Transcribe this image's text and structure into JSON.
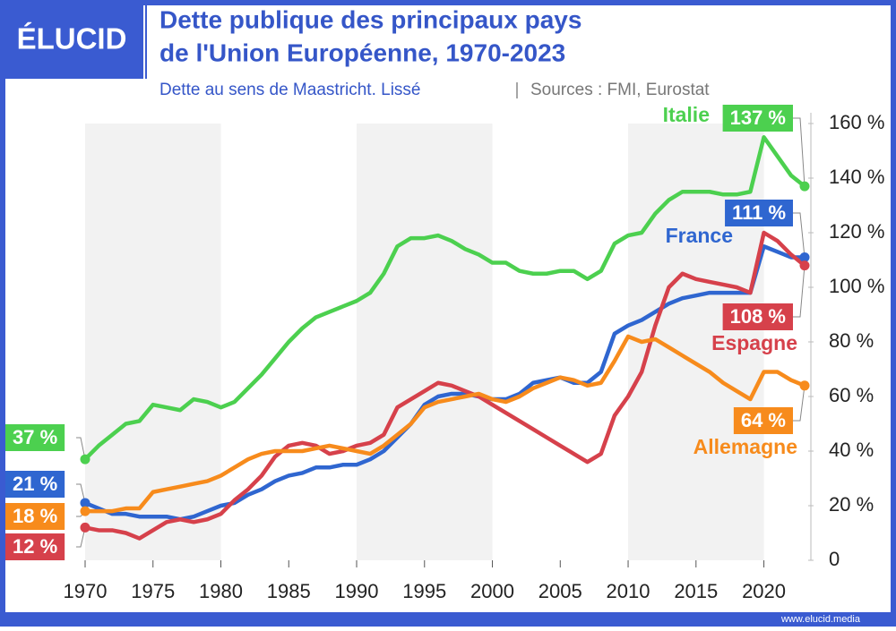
{
  "header": {
    "logo": "ÉLUCID",
    "title_line1": "Dette publique des principaux pays",
    "title_line2": "de l'Union Européenne, 1970-2023",
    "subtitle": "Dette au sens de Maastricht. Lissé",
    "source": "Sources : FMI, Eurostat"
  },
  "footer": {
    "url": "www.elucid.media"
  },
  "chart_data": {
    "type": "line",
    "x": [
      1970,
      1971,
      1972,
      1973,
      1974,
      1975,
      1976,
      1977,
      1978,
      1979,
      1980,
      1981,
      1982,
      1983,
      1984,
      1985,
      1986,
      1987,
      1988,
      1989,
      1990,
      1991,
      1992,
      1993,
      1994,
      1995,
      1996,
      1997,
      1998,
      1999,
      2000,
      2001,
      2002,
      2003,
      2004,
      2005,
      2006,
      2007,
      2008,
      2009,
      2010,
      2011,
      2012,
      2013,
      2014,
      2015,
      2016,
      2017,
      2018,
      2019,
      2020,
      2021,
      2022,
      2023
    ],
    "xlim": [
      1970,
      2023
    ],
    "xticks": [
      1970,
      1975,
      1980,
      1985,
      1990,
      1995,
      2000,
      2005,
      2010,
      2015,
      2020
    ],
    "ylim": [
      0,
      160
    ],
    "yticks": [
      0,
      {
        "value": 20,
        "label": "20 %"
      },
      {
        "value": 40,
        "label": "40 %"
      },
      {
        "value": 60,
        "label": "60 %"
      },
      {
        "value": 80,
        "label": "80 %"
      },
      {
        "value": 100,
        "label": "100 %"
      },
      {
        "value": 120,
        "label": "120 %"
      },
      {
        "value": 140,
        "label": "140 %"
      },
      {
        "value": 160,
        "label": "160 %"
      }
    ],
    "shaded_bands": true,
    "series": [
      {
        "name": "Italie",
        "color": "#4cd04f",
        "values": [
          37,
          42,
          46,
          50,
          51,
          57,
          56,
          55,
          59,
          58,
          56,
          58,
          63,
          68,
          74,
          80,
          85,
          89,
          91,
          93,
          95,
          98,
          105,
          115,
          118,
          118,
          119,
          117,
          114,
          112,
          109,
          109,
          106,
          105,
          105,
          106,
          106,
          103,
          106,
          116,
          119,
          120,
          127,
          132,
          135,
          135,
          135,
          134,
          134,
          135,
          155,
          148,
          141,
          137
        ],
        "value_labels": [
          "37 %",
          null,
          null,
          null,
          null,
          null,
          null,
          null,
          null,
          null,
          null,
          null,
          null,
          null,
          null,
          null,
          null,
          null,
          null,
          null,
          null,
          null,
          null,
          null,
          null,
          null,
          null,
          null,
          null,
          null,
          null,
          null,
          null,
          null,
          null,
          null,
          null,
          null,
          null,
          null,
          null,
          null,
          null,
          null,
          null,
          null,
          null,
          null,
          null,
          null,
          null,
          null,
          null,
          "137 %"
        ]
      },
      {
        "name": "France",
        "color": "#2f66d0",
        "values": [
          21,
          19,
          17,
          17,
          16,
          16,
          16,
          15,
          16,
          18,
          20,
          21,
          24,
          26,
          29,
          31,
          32,
          34,
          34,
          35,
          35,
          37,
          40,
          45,
          50,
          57,
          60,
          61,
          61,
          60,
          59,
          59,
          61,
          65,
          66,
          67,
          65,
          65,
          69,
          83,
          86,
          88,
          91,
          94,
          96,
          97,
          98,
          98,
          98,
          98,
          115,
          113,
          111,
          111
        ],
        "value_labels": [
          "21 %",
          null,
          null,
          null,
          null,
          null,
          null,
          null,
          null,
          null,
          null,
          null,
          null,
          null,
          null,
          null,
          null,
          null,
          null,
          null,
          null,
          null,
          null,
          null,
          null,
          null,
          null,
          null,
          null,
          null,
          null,
          null,
          null,
          null,
          null,
          null,
          null,
          null,
          null,
          null,
          null,
          null,
          null,
          null,
          null,
          null,
          null,
          null,
          null,
          null,
          null,
          null,
          null,
          "111 %"
        ]
      },
      {
        "name": "Espagne",
        "color": "#d6414b",
        "values": [
          12,
          11,
          11,
          10,
          8,
          11,
          14,
          15,
          14,
          15,
          17,
          22,
          26,
          31,
          38,
          42,
          43,
          42,
          39,
          40,
          42,
          43,
          46,
          56,
          59,
          62,
          65,
          64,
          62,
          60,
          57,
          54,
          51,
          48,
          45,
          42,
          39,
          36,
          39,
          53,
          60,
          69,
          86,
          100,
          105,
          103,
          102,
          101,
          100,
          98,
          120,
          117,
          112,
          108
        ],
        "value_labels": [
          "12 %",
          null,
          null,
          null,
          null,
          null,
          null,
          null,
          null,
          null,
          null,
          null,
          null,
          null,
          null,
          null,
          null,
          null,
          null,
          null,
          null,
          null,
          null,
          null,
          null,
          null,
          null,
          null,
          null,
          null,
          null,
          null,
          null,
          null,
          null,
          null,
          null,
          null,
          null,
          null,
          null,
          null,
          null,
          null,
          null,
          null,
          null,
          null,
          null,
          null,
          null,
          null,
          null,
          "108 %"
        ]
      },
      {
        "name": "Allemagne",
        "color": "#f78b1c",
        "values": [
          18,
          18,
          18,
          19,
          19,
          25,
          26,
          27,
          28,
          29,
          31,
          34,
          37,
          39,
          40,
          40,
          40,
          41,
          42,
          41,
          40,
          39,
          42,
          46,
          50,
          56,
          58,
          59,
          60,
          61,
          59,
          58,
          60,
          63,
          65,
          67,
          66,
          64,
          65,
          73,
          82,
          80,
          81,
          78,
          75,
          72,
          69,
          65,
          62,
          59,
          69,
          69,
          66,
          64
        ],
        "value_labels": [
          "18 %",
          null,
          null,
          null,
          null,
          null,
          null,
          null,
          null,
          null,
          null,
          null,
          null,
          null,
          null,
          null,
          null,
          null,
          null,
          null,
          null,
          null,
          null,
          null,
          null,
          null,
          null,
          null,
          null,
          null,
          null,
          null,
          null,
          null,
          null,
          null,
          null,
          null,
          null,
          null,
          null,
          null,
          null,
          null,
          null,
          null,
          null,
          null,
          null,
          null,
          null,
          null,
          null,
          "64 %"
        ]
      }
    ]
  }
}
